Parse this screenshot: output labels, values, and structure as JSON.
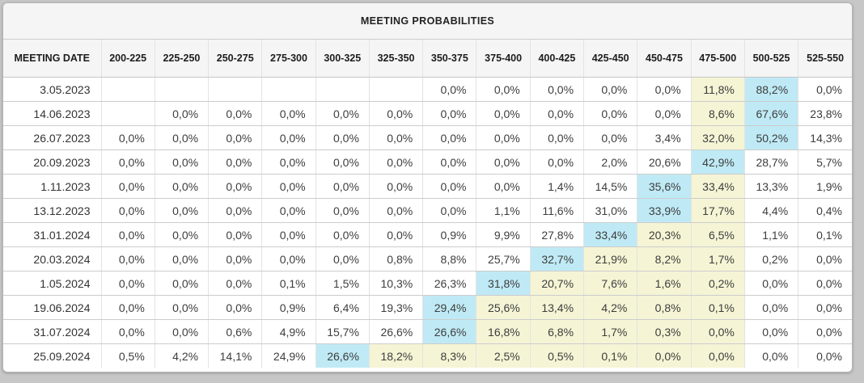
{
  "title": "MEETING PROBABILITIES",
  "colors": {
    "page_bg": "#c7c7c7",
    "header_bg": "#f5f5f5",
    "hl_yellow": "#f5f4d5",
    "hl_cyan": "#bfeaf5"
  },
  "chart_data": {
    "type": "table",
    "title": "MEETING PROBABILITIES",
    "note_highlights": "c = cyan highlight (highest probability in row), y = pale-yellow highlight",
    "date_header": "MEETING DATE",
    "rate_headers": [
      "200-225",
      "225-250",
      "250-275",
      "275-300",
      "300-325",
      "325-350",
      "350-375",
      "375-400",
      "400-425",
      "425-450",
      "450-475",
      "475-500",
      "500-525",
      "525-550"
    ],
    "rows": [
      {
        "date": "3.05.2023",
        "values": [
          "",
          "",
          "",
          "",
          "",
          "",
          "0,0%",
          "0,0%",
          "0,0%",
          "0,0%",
          "0,0%",
          "11,8%",
          "88,2%",
          "0,0%"
        ],
        "hl": [
          "",
          "",
          "",
          "",
          "",
          "",
          "",
          "",
          "",
          "",
          "",
          "y",
          "c",
          ""
        ]
      },
      {
        "date": "14.06.2023",
        "values": [
          "",
          "0,0%",
          "0,0%",
          "0,0%",
          "0,0%",
          "0,0%",
          "0,0%",
          "0,0%",
          "0,0%",
          "0,0%",
          "0,0%",
          "8,6%",
          "67,6%",
          "23,8%"
        ],
        "hl": [
          "",
          "",
          "",
          "",
          "",
          "",
          "",
          "",
          "",
          "",
          "",
          "y",
          "c",
          ""
        ]
      },
      {
        "date": "26.07.2023",
        "values": [
          "0,0%",
          "0,0%",
          "0,0%",
          "0,0%",
          "0,0%",
          "0,0%",
          "0,0%",
          "0,0%",
          "0,0%",
          "0,0%",
          "3,4%",
          "32,0%",
          "50,2%",
          "14,3%"
        ],
        "hl": [
          "",
          "",
          "",
          "",
          "",
          "",
          "",
          "",
          "",
          "",
          "",
          "y",
          "c",
          ""
        ]
      },
      {
        "date": "20.09.2023",
        "values": [
          "0,0%",
          "0,0%",
          "0,0%",
          "0,0%",
          "0,0%",
          "0,0%",
          "0,0%",
          "0,0%",
          "0,0%",
          "2,0%",
          "20,6%",
          "42,9%",
          "28,7%",
          "5,7%"
        ],
        "hl": [
          "",
          "",
          "",
          "",
          "",
          "",
          "",
          "",
          "",
          "",
          "",
          "c",
          "",
          ""
        ]
      },
      {
        "date": "1.11.2023",
        "values": [
          "0,0%",
          "0,0%",
          "0,0%",
          "0,0%",
          "0,0%",
          "0,0%",
          "0,0%",
          "0,0%",
          "1,4%",
          "14,5%",
          "35,6%",
          "33,4%",
          "13,3%",
          "1,9%"
        ],
        "hl": [
          "",
          "",
          "",
          "",
          "",
          "",
          "",
          "",
          "",
          "",
          "c",
          "y",
          "",
          ""
        ]
      },
      {
        "date": "13.12.2023",
        "values": [
          "0,0%",
          "0,0%",
          "0,0%",
          "0,0%",
          "0,0%",
          "0,0%",
          "0,0%",
          "1,1%",
          "11,6%",
          "31,0%",
          "33,9%",
          "17,7%",
          "4,4%",
          "0,4%"
        ],
        "hl": [
          "",
          "",
          "",
          "",
          "",
          "",
          "",
          "",
          "",
          "",
          "c",
          "y",
          "",
          ""
        ]
      },
      {
        "date": "31.01.2024",
        "values": [
          "0,0%",
          "0,0%",
          "0,0%",
          "0,0%",
          "0,0%",
          "0,0%",
          "0,9%",
          "9,9%",
          "27,8%",
          "33,4%",
          "20,3%",
          "6,5%",
          "1,1%",
          "0,1%"
        ],
        "hl": [
          "",
          "",
          "",
          "",
          "",
          "",
          "",
          "",
          "",
          "c",
          "y",
          "y",
          "",
          ""
        ]
      },
      {
        "date": "20.03.2024",
        "values": [
          "0,0%",
          "0,0%",
          "0,0%",
          "0,0%",
          "0,0%",
          "0,8%",
          "8,8%",
          "25,7%",
          "32,7%",
          "21,9%",
          "8,2%",
          "1,7%",
          "0,2%",
          "0,0%"
        ],
        "hl": [
          "",
          "",
          "",
          "",
          "",
          "",
          "",
          "",
          "c",
          "y",
          "y",
          "y",
          "",
          ""
        ]
      },
      {
        "date": "1.05.2024",
        "values": [
          "0,0%",
          "0,0%",
          "0,0%",
          "0,1%",
          "1,5%",
          "10,3%",
          "26,3%",
          "31,8%",
          "20,7%",
          "7,6%",
          "1,6%",
          "0,2%",
          "0,0%",
          "0,0%"
        ],
        "hl": [
          "",
          "",
          "",
          "",
          "",
          "",
          "",
          "c",
          "y",
          "y",
          "y",
          "y",
          "",
          ""
        ]
      },
      {
        "date": "19.06.2024",
        "values": [
          "0,0%",
          "0,0%",
          "0,0%",
          "0,9%",
          "6,4%",
          "19,3%",
          "29,4%",
          "25,6%",
          "13,4%",
          "4,2%",
          "0,8%",
          "0,1%",
          "0,0%",
          "0,0%"
        ],
        "hl": [
          "",
          "",
          "",
          "",
          "",
          "",
          "c",
          "y",
          "y",
          "y",
          "y",
          "y",
          "",
          ""
        ]
      },
      {
        "date": "31.07.2024",
        "values": [
          "0,0%",
          "0,0%",
          "0,6%",
          "4,9%",
          "15,7%",
          "26,6%",
          "26,6%",
          "16,8%",
          "6,8%",
          "1,7%",
          "0,3%",
          "0,0%",
          "0,0%",
          "0,0%"
        ],
        "hl": [
          "",
          "",
          "",
          "",
          "",
          "",
          "c",
          "y",
          "y",
          "y",
          "y",
          "y",
          "",
          ""
        ]
      },
      {
        "date": "25.09.2024",
        "values": [
          "0,5%",
          "4,2%",
          "14,1%",
          "24,9%",
          "26,6%",
          "18,2%",
          "8,3%",
          "2,5%",
          "0,5%",
          "0,1%",
          "0,0%",
          "0,0%",
          "0,0%",
          "0,0%"
        ],
        "hl": [
          "",
          "",
          "",
          "",
          "c",
          "y",
          "y",
          "y",
          "y",
          "y",
          "y",
          "y",
          "",
          ""
        ]
      }
    ]
  }
}
